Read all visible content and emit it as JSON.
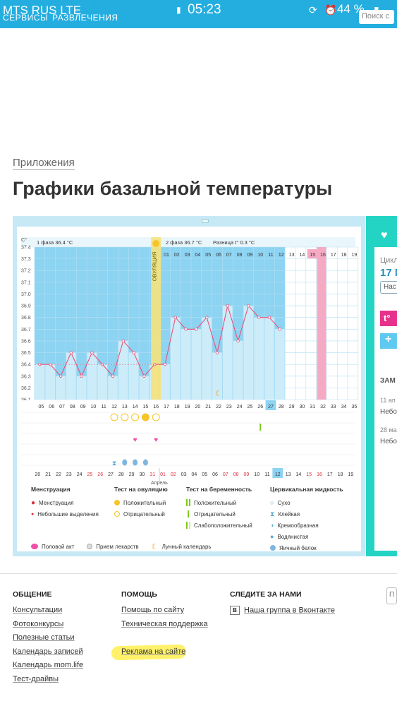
{
  "status_bar": {
    "carrier": "MTS RUS  LTE",
    "time": "05:23",
    "battery": "44 %",
    "nav_items": [
      "СЕРВИСЫ",
      "РАЗВЛЕЧЕНИЯ"
    ],
    "search_placeholder": "Поиск с"
  },
  "breadcrumb": "Приложения",
  "page_title": "Графики базальной температуры",
  "chart_data": {
    "type": "line",
    "ylabel": "C°",
    "ylim": [
      36.1,
      37.4
    ],
    "y_ticks": [
      37.4,
      37.3,
      37.2,
      37.1,
      37.0,
      36.9,
      36.8,
      36.7,
      36.6,
      36.5,
      36.4,
      36.3,
      36.2,
      36.1
    ],
    "phase1_label": "1 фаза 36.4 °C",
    "phase2_label": "2 фаза 36.7 °C",
    "diff_label": "Разница t° 0.3 °C",
    "ovulation_label": "ОВУЛЯЦИЯ",
    "top_days": [
      "01",
      "02",
      "03",
      "04",
      "05",
      "06",
      "07",
      "08",
      "09",
      "10",
      "11",
      "12",
      "13",
      "14",
      "15",
      "16",
      "17",
      "18",
      "19"
    ],
    "highlight_top_day": "15",
    "cycle_days": [
      "05",
      "06",
      "07",
      "08",
      "09",
      "10",
      "11",
      "12",
      "13",
      "14",
      "15",
      "16",
      "17",
      "18",
      "19",
      "20",
      "21",
      "22",
      "23",
      "24",
      "25",
      "26",
      "27",
      "28",
      "29",
      "30",
      "31",
      "32",
      "33",
      "34",
      "35"
    ],
    "highlight_cycle_day": "27",
    "temperatures": [
      36.4,
      36.4,
      36.3,
      36.5,
      36.3,
      36.5,
      36.4,
      36.3,
      36.6,
      36.5,
      36.3,
      36.4,
      36.4,
      36.8,
      36.7,
      36.7,
      36.8,
      36.5,
      36.9,
      36.6,
      36.9,
      36.8,
      36.8,
      36.7
    ],
    "dates": [
      "20",
      "21",
      "22",
      "23",
      "24",
      "25",
      "26",
      "27",
      "28",
      "29",
      "30",
      "31",
      "01",
      "02",
      "03",
      "04",
      "05",
      "06",
      "07",
      "08",
      "09",
      "10",
      "11",
      "12",
      "13",
      "14",
      "15",
      "16",
      "17",
      "18",
      "19",
      "20"
    ],
    "red_dates": [
      "25",
      "26",
      "31",
      "01",
      "02",
      "07",
      "08",
      "09",
      "15",
      "16"
    ],
    "highlight_date": "12",
    "month_label": "Апрель"
  },
  "legend": {
    "menstruation": {
      "title": "Менструация",
      "items": [
        "Менструация",
        "Небольшие выделения"
      ]
    },
    "ovulation_test": {
      "title": "Тест на овуляцию",
      "items": [
        "Положительный",
        "Отрицательный"
      ]
    },
    "pregnancy_test": {
      "title": "Тест на беременность",
      "items": [
        "Положительный",
        "Отрицательный",
        "Слабоположительный"
      ]
    },
    "cervical": {
      "title": "Цервикальная жидкость",
      "items": [
        "Сухо",
        "Клейкая",
        "Кремообразная",
        "Водянистая",
        "Яичный белок"
      ]
    },
    "bottom": [
      "Половой акт",
      "Прием лекарств",
      "Лунный календарь"
    ]
  },
  "sidebar": {
    "cycle_label": "Цикл",
    "cycle_value": "17 М",
    "settings_label": "Нас",
    "section_title": "ЗАМ",
    "entry1_date": "11 ап",
    "entry1_text": "Небо",
    "entry2_date": "28 ма",
    "entry2_text": "Небо"
  },
  "footer": {
    "communication": {
      "title": "ОБЩЕНИЕ",
      "links": [
        "Консультации",
        "Фотоконкурсы",
        "Полезные статьи",
        "Календарь записей",
        "Календарь mom.life",
        "Тест-драйвы"
      ]
    },
    "help": {
      "title": "ПОМОЩЬ",
      "links": [
        "Помощь по сайту",
        "Техническая поддержка",
        "Реклама на сайте"
      ]
    },
    "follow": {
      "title": "СЛЕДИТЕ ЗА НАМИ",
      "vk_label": "Наша группа в Вконтакте"
    }
  },
  "colors": {
    "accent": "#24aee0",
    "chart_bg": "#8dd3f2",
    "bar": "#cdecf9",
    "line": "#e8537a",
    "ovulation": "#f6e27a",
    "teal": "#23d4c4"
  }
}
